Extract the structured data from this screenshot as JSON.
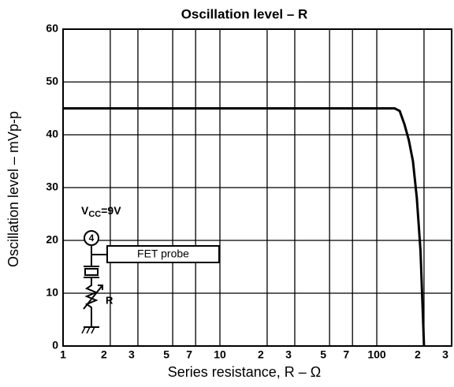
{
  "chart_data": {
    "type": "line",
    "title": "Oscillation level – R",
    "xlabel": "Series resistance, R – Ω",
    "ylabel": "Oscillation level – mVp-p",
    "xscale": "log",
    "xlim": [
      1,
      300
    ],
    "ylim": [
      0,
      60
    ],
    "xticks": [
      1,
      {
        "value": 2,
        "label": "2"
      },
      {
        "value": 3,
        "label": "3"
      },
      {
        "value": 5,
        "label": "5"
      },
      {
        "value": 7,
        "label": "7"
      },
      10,
      {
        "value": 20,
        "label": "2"
      },
      {
        "value": 30,
        "label": "3"
      },
      {
        "value": 50,
        "label": "5"
      },
      {
        "value": 70,
        "label": "7"
      },
      100,
      {
        "value": 200,
        "label": "2"
      },
      {
        "value": 300,
        "label": "3"
      }
    ],
    "yticks": [
      0,
      10,
      20,
      30,
      40,
      50,
      60
    ],
    "grid": true,
    "series": [
      {
        "color": "#000000",
        "x": [
          1,
          130,
          140,
          150,
          160,
          170,
          180,
          190,
          200
        ],
        "values": [
          45,
          45,
          44.5,
          42,
          39,
          35,
          28,
          18,
          0
        ]
      }
    ],
    "circuit": {
      "supply": [
        "V",
        "CC",
        "=9V"
      ],
      "pin": "4",
      "probe": "FET probe",
      "resistor": "R"
    }
  }
}
